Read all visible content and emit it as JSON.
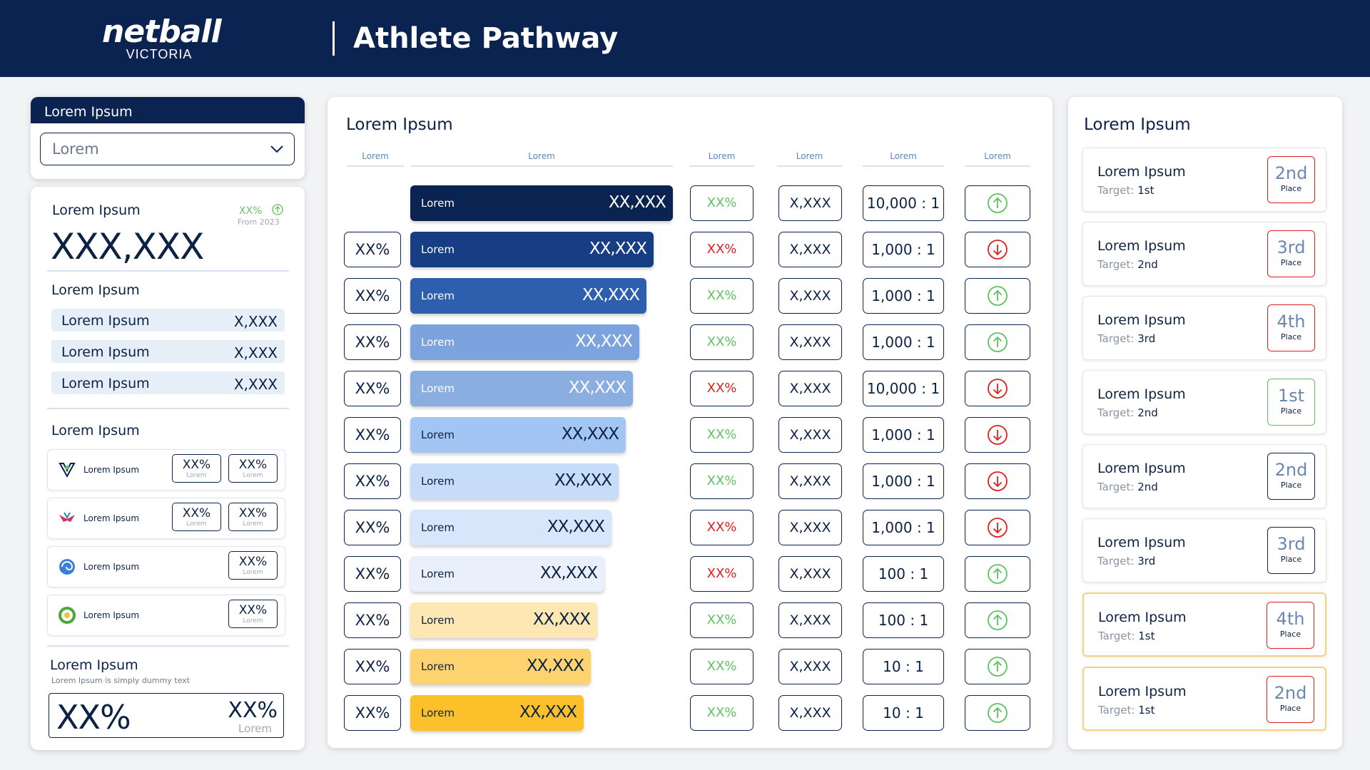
{
  "header": {
    "logo_main": "netball",
    "logo_sub": "VICTORIA",
    "title": "Athlete Pathway"
  },
  "filter": {
    "heading": "Lorem Ipsum",
    "selected": "Lorem"
  },
  "summary": {
    "title": "Lorem Ipsum",
    "change": "XX%",
    "change_from": "From 2023",
    "total": "XXX,XXX",
    "breakdown_title": "Lorem Ipsum",
    "breakdown": [
      {
        "label": "Lorem Ipsum",
        "value": "X,XXX"
      },
      {
        "label": "Lorem Ipsum",
        "value": "X,XXX"
      },
      {
        "label": "Lorem Ipsum",
        "value": "X,XXX"
      }
    ],
    "teams_title": "Lorem Ipsum",
    "teams": [
      {
        "name": "Lorem Ipsum",
        "stats": [
          {
            "value": "XX%",
            "label": "Lorem"
          },
          {
            "value": "XX%",
            "label": "Lorem"
          }
        ]
      },
      {
        "name": "Lorem Ipsum",
        "stats": [
          {
            "value": "XX%",
            "label": "Lorem"
          },
          {
            "value": "XX%",
            "label": "Lorem"
          }
        ]
      },
      {
        "name": "Lorem Ipsum",
        "stats": [
          {
            "value": "XX%",
            "label": "Lorem"
          }
        ]
      },
      {
        "name": "Lorem Ipsum",
        "stats": [
          {
            "value": "XX%",
            "label": "Lorem"
          }
        ]
      }
    ],
    "footer_title": "Lorem Ipsum",
    "footer_sub": "Lorem Ipsum is simply dummy text",
    "footer_big": "XX%",
    "footer_small": "XX%",
    "footer_small_label": "Lorem"
  },
  "pathway": {
    "title": "Lorem Ipsum",
    "columns": [
      "Lorem",
      "Lorem",
      "Lorem",
      "Lorem",
      "Lorem",
      "Lorem"
    ],
    "rows": [
      {
        "pct": "",
        "label": "Lorem",
        "value": "XX,XXX",
        "change": "XX%",
        "trend": "up",
        "count": "X,XXX",
        "ratio": "10,000 : 1",
        "bar_color": "#0b2350",
        "text_color": "#ffffff",
        "bar_fill": 1.0
      },
      {
        "pct": "XX%",
        "label": "Lorem",
        "value": "XX,XXX",
        "change": "XX%",
        "trend": "down",
        "count": "X,XXX",
        "ratio": "1,000 : 1",
        "bar_color": "#173e85",
        "text_color": "#ffffff",
        "bar_fill": 0.927
      },
      {
        "pct": "XX%",
        "label": "Lorem",
        "value": "XX,XXX",
        "change": "XX%",
        "trend": "up",
        "count": "X,XXX",
        "ratio": "1,000 : 1",
        "bar_color": "#2e5fae",
        "text_color": "#ffffff",
        "bar_fill": 0.9
      },
      {
        "pct": "XX%",
        "label": "Lorem",
        "value": "XX,XXX",
        "change": "XX%",
        "trend": "up",
        "count": "X,XXX",
        "ratio": "1,000 : 1",
        "bar_color": "#7ca3de",
        "text_color": "#ffffff",
        "bar_fill": 0.873
      },
      {
        "pct": "XX%",
        "label": "Lorem",
        "value": "XX,XXX",
        "change": "XX%",
        "trend": "down",
        "count": "X,XXX",
        "ratio": "10,000 : 1",
        "bar_color": "#8aaee0",
        "text_color": "#ffffff",
        "bar_fill": 0.847
      },
      {
        "pct": "XX%",
        "label": "Lorem",
        "value": "XX,XXX",
        "change": "XX%",
        "trend": "down",
        "count": "X,XXX",
        "ratio": "1,000 : 1",
        "bar_color": "#a3c5f3",
        "text_color": "#0b2245",
        "bar_fill": 0.82
      },
      {
        "pct": "XX%",
        "label": "Lorem",
        "value": "XX,XXX",
        "change": "XX%",
        "trend": "down",
        "count": "X,XXX",
        "ratio": "1,000 : 1",
        "bar_color": "#c6dcf9",
        "text_color": "#0b2245",
        "bar_fill": 0.793
      },
      {
        "pct": "XX%",
        "label": "Lorem",
        "value": "XX,XXX",
        "change": "XX%",
        "trend": "down",
        "count": "X,XXX",
        "ratio": "1,000 : 1",
        "bar_color": "#d7e6fb",
        "text_color": "#0b2245",
        "bar_fill": 0.767
      },
      {
        "pct": "XX%",
        "label": "Lorem",
        "value": "XX,XXX",
        "change": "XX%",
        "trend": "up",
        "count": "X,XXX",
        "ratio": "100 : 1",
        "bar_color": "#e9f0fb",
        "text_color": "#0b2245",
        "bar_fill": 0.74
      },
      {
        "pct": "XX%",
        "label": "Lorem",
        "value": "XX,XXX",
        "change": "XX%",
        "trend": "up",
        "count": "X,XXX",
        "ratio": "100 : 1",
        "bar_color": "#fde8b3",
        "text_color": "#0b2245",
        "bar_fill": 0.713
      },
      {
        "pct": "XX%",
        "label": "Lorem",
        "value": "XX,XXX",
        "change": "XX%",
        "trend": "up",
        "count": "X,XXX",
        "ratio": "10 : 1",
        "bar_color": "#fcd36e",
        "text_color": "#0b2245",
        "bar_fill": 0.687
      },
      {
        "pct": "XX%",
        "label": "Lorem",
        "value": "XX,XXX",
        "change": "XX%",
        "trend": "up",
        "count": "X,XXX",
        "ratio": "10  : 1",
        "bar_color": "#fbc02a",
        "text_color": "#0b2245",
        "bar_fill": 0.66
      }
    ],
    "change_colors": [
      "green",
      "red",
      "green",
      "green",
      "red",
      "green",
      "green",
      "red",
      "red",
      "green",
      "green",
      "green"
    ]
  },
  "rankings": {
    "title": "Lorem Ipsum",
    "items": [
      {
        "name": "Lorem Ipsum",
        "target_label": "Target:",
        "target": "1st",
        "place": "2nd",
        "place_label": "Place",
        "badge": "red",
        "highlight": false
      },
      {
        "name": "Lorem Ipsum",
        "target_label": "Target:",
        "target": "2nd",
        "place": "3rd",
        "place_label": "Place",
        "badge": "red",
        "highlight": false
      },
      {
        "name": "Lorem Ipsum",
        "target_label": "Target:",
        "target": "3rd",
        "place": "4th",
        "place_label": "Place",
        "badge": "red",
        "highlight": false
      },
      {
        "name": "Lorem Ipsum",
        "target_label": "Target:",
        "target": "2nd",
        "place": "1st",
        "place_label": "Place",
        "badge": "green",
        "highlight": false
      },
      {
        "name": "Lorem Ipsum",
        "target_label": "Target:",
        "target": "2nd",
        "place": "2nd",
        "place_label": "Place",
        "badge": "navy",
        "highlight": false
      },
      {
        "name": "Lorem Ipsum",
        "target_label": "Target:",
        "target": "3rd",
        "place": "3rd",
        "place_label": "Place",
        "badge": "navy",
        "highlight": false
      },
      {
        "name": "Lorem Ipsum",
        "target_label": "Target:",
        "target": "1st",
        "place": "4th",
        "place_label": "Place",
        "badge": "red",
        "highlight": true
      },
      {
        "name": "Lorem Ipsum",
        "target_label": "Target:",
        "target": "1st",
        "place": "2nd",
        "place_label": "Place",
        "badge": "red",
        "highlight": true
      }
    ]
  },
  "colors": {
    "navy": "#0b2350",
    "green": "#5dc25f",
    "red": "#e02020",
    "gold_border": "#f5d37d"
  },
  "icons": {
    "dropdown": "chevron-down-icon",
    "up": "arrow-up-circle-icon",
    "down": "arrow-down-circle-icon"
  }
}
